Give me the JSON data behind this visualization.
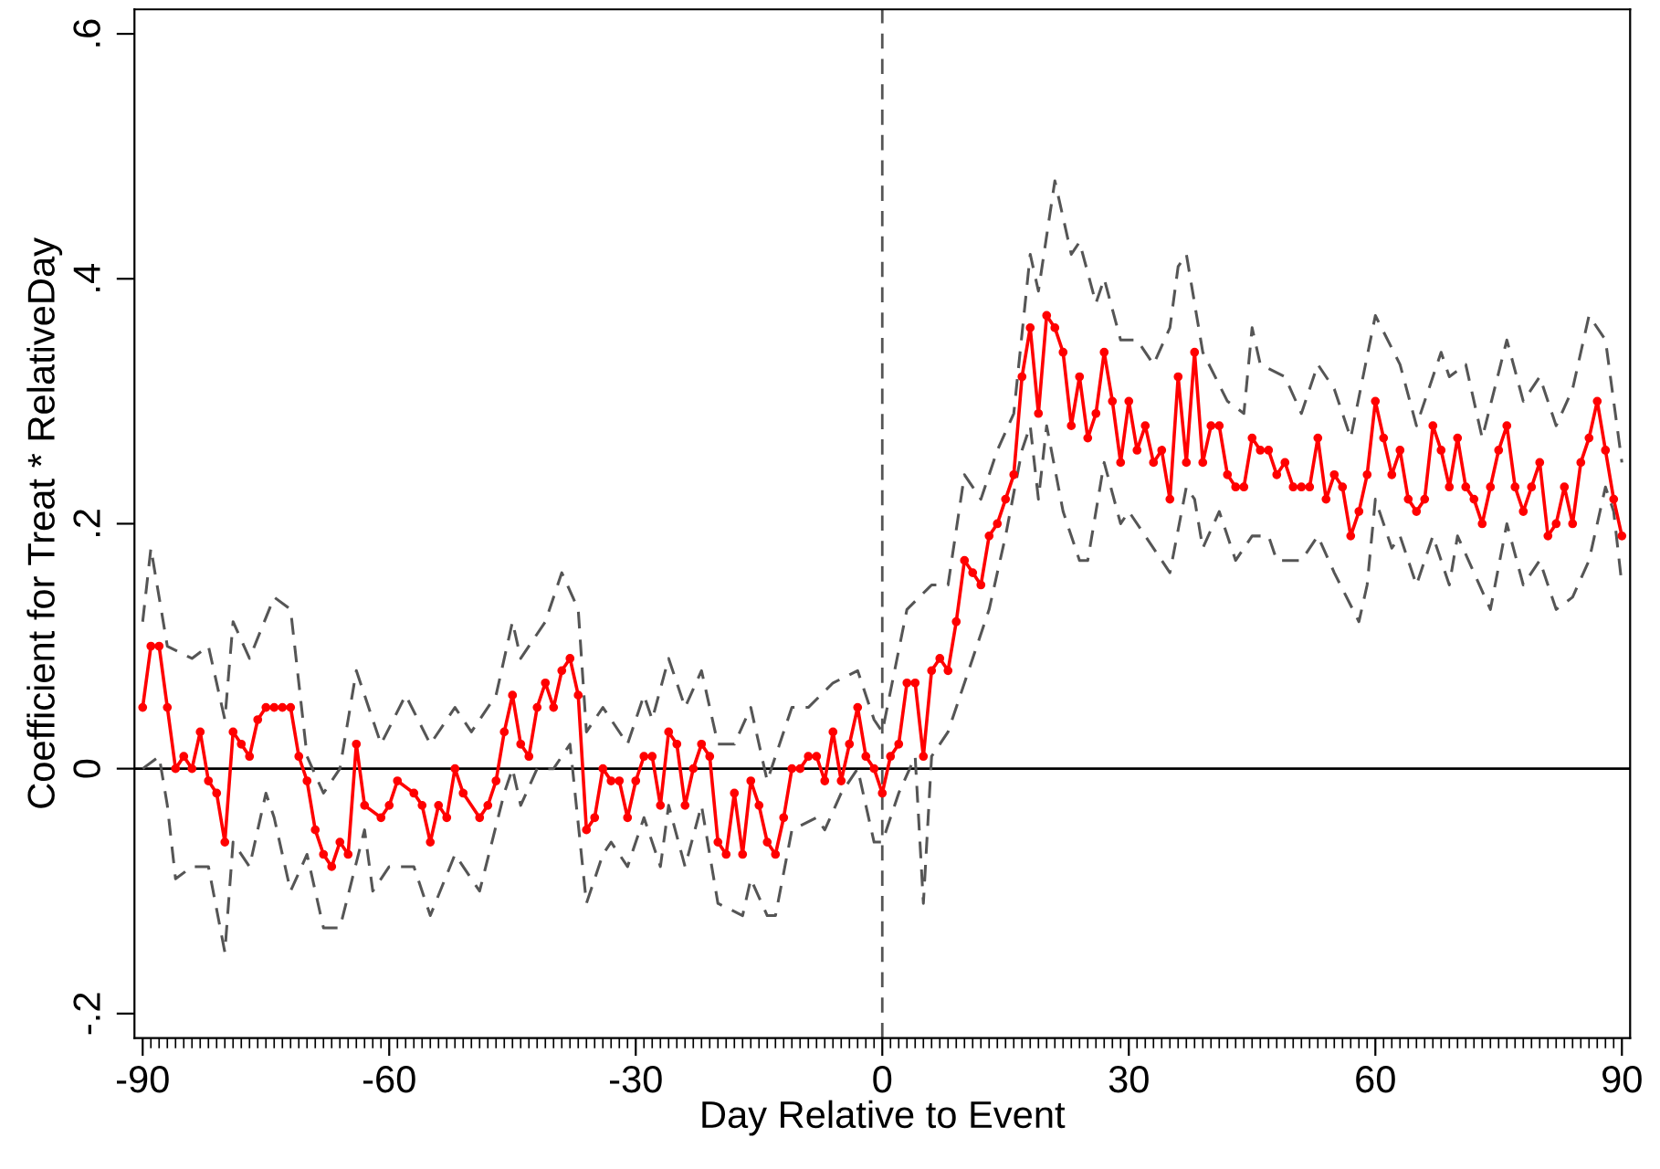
{
  "chart_data": {
    "type": "line",
    "xlabel": "Day Relative to Event",
    "ylabel": "Coefficient for Treat * RelativeDay",
    "xlim": [
      -91,
      91
    ],
    "ylim": [
      -0.22,
      0.62
    ],
    "yticks": [
      {
        "value": -0.2,
        "label": "-.2"
      },
      {
        "value": 0,
        "label": "0"
      },
      {
        "value": 0.2,
        "label": ".2"
      },
      {
        "value": 0.4,
        "label": ".4"
      },
      {
        "value": 0.6,
        "label": ".6"
      }
    ],
    "xticks": [
      -90,
      -60,
      -30,
      0,
      30,
      60,
      90,
      {
        "value": -89,
        "label": null
      },
      {
        "value": -88,
        "label": null
      },
      {
        "value": -87,
        "label": null
      },
      {
        "value": -86,
        "label": null
      },
      {
        "value": -85,
        "label": null
      },
      {
        "value": -84,
        "label": null
      },
      {
        "value": -83,
        "label": null
      },
      {
        "value": -82,
        "label": null
      },
      {
        "value": -81,
        "label": null
      },
      {
        "value": -80,
        "label": null
      },
      {
        "value": -79,
        "label": null
      },
      {
        "value": -78,
        "label": null
      },
      {
        "value": -77,
        "label": null
      },
      {
        "value": -76,
        "label": null
      },
      {
        "value": -75,
        "label": null
      },
      {
        "value": -74,
        "label": null
      },
      {
        "value": -73,
        "label": null
      },
      {
        "value": -72,
        "label": null
      },
      {
        "value": -71,
        "label": null
      },
      {
        "value": -70,
        "label": null
      },
      {
        "value": -69,
        "label": null
      },
      {
        "value": -68,
        "label": null
      },
      {
        "value": -67,
        "label": null
      },
      {
        "value": -66,
        "label": null
      },
      {
        "value": -65,
        "label": null
      },
      {
        "value": -64,
        "label": null
      },
      {
        "value": -63,
        "label": null
      },
      {
        "value": -62,
        "label": null
      },
      {
        "value": -61,
        "label": null
      },
      {
        "value": -59,
        "label": null
      },
      {
        "value": -58,
        "label": null
      },
      {
        "value": -57,
        "label": null
      },
      {
        "value": -56,
        "label": null
      },
      {
        "value": -55,
        "label": null
      },
      {
        "value": -54,
        "label": null
      },
      {
        "value": -53,
        "label": null
      },
      {
        "value": -52,
        "label": null
      },
      {
        "value": -51,
        "label": null
      },
      {
        "value": -50,
        "label": null
      },
      {
        "value": -49,
        "label": null
      },
      {
        "value": -48,
        "label": null
      },
      {
        "value": -47,
        "label": null
      },
      {
        "value": -46,
        "label": null
      },
      {
        "value": -45,
        "label": null
      },
      {
        "value": -44,
        "label": null
      },
      {
        "value": -43,
        "label": null
      },
      {
        "value": -42,
        "label": null
      },
      {
        "value": -41,
        "label": null
      },
      {
        "value": -40,
        "label": null
      },
      {
        "value": -39,
        "label": null
      },
      {
        "value": -38,
        "label": null
      },
      {
        "value": -37,
        "label": null
      },
      {
        "value": -36,
        "label": null
      },
      {
        "value": -35,
        "label": null
      },
      {
        "value": -34,
        "label": null
      },
      {
        "value": -33,
        "label": null
      },
      {
        "value": -32,
        "label": null
      },
      {
        "value": -31,
        "label": null
      },
      {
        "value": -29,
        "label": null
      },
      {
        "value": -28,
        "label": null
      },
      {
        "value": -27,
        "label": null
      },
      {
        "value": -26,
        "label": null
      },
      {
        "value": -25,
        "label": null
      },
      {
        "value": -24,
        "label": null
      },
      {
        "value": -23,
        "label": null
      },
      {
        "value": -22,
        "label": null
      },
      {
        "value": -21,
        "label": null
      },
      {
        "value": -20,
        "label": null
      },
      {
        "value": -19,
        "label": null
      },
      {
        "value": -18,
        "label": null
      },
      {
        "value": -17,
        "label": null
      },
      {
        "value": -16,
        "label": null
      },
      {
        "value": -15,
        "label": null
      },
      {
        "value": -14,
        "label": null
      },
      {
        "value": -13,
        "label": null
      },
      {
        "value": -12,
        "label": null
      },
      {
        "value": -11,
        "label": null
      },
      {
        "value": -10,
        "label": null
      },
      {
        "value": -9,
        "label": null
      },
      {
        "value": -8,
        "label": null
      },
      {
        "value": -7,
        "label": null
      },
      {
        "value": -6,
        "label": null
      },
      {
        "value": -5,
        "label": null
      },
      {
        "value": -4,
        "label": null
      },
      {
        "value": -3,
        "label": null
      },
      {
        "value": -2,
        "label": null
      },
      {
        "value": -1,
        "label": null
      },
      {
        "value": 1,
        "label": null
      },
      {
        "value": 2,
        "label": null
      },
      {
        "value": 3,
        "label": null
      },
      {
        "value": 4,
        "label": null
      },
      {
        "value": 5,
        "label": null
      },
      {
        "value": 6,
        "label": null
      },
      {
        "value": 7,
        "label": null
      },
      {
        "value": 8,
        "label": null
      },
      {
        "value": 9,
        "label": null
      },
      {
        "value": 10,
        "label": null
      },
      {
        "value": 11,
        "label": null
      },
      {
        "value": 12,
        "label": null
      },
      {
        "value": 13,
        "label": null
      },
      {
        "value": 14,
        "label": null
      },
      {
        "value": 15,
        "label": null
      },
      {
        "value": 16,
        "label": null
      },
      {
        "value": 17,
        "label": null
      },
      {
        "value": 18,
        "label": null
      },
      {
        "value": 19,
        "label": null
      },
      {
        "value": 20,
        "label": null
      },
      {
        "value": 21,
        "label": null
      },
      {
        "value": 22,
        "label": null
      },
      {
        "value": 23,
        "label": null
      },
      {
        "value": 24,
        "label": null
      },
      {
        "value": 25,
        "label": null
      },
      {
        "value": 26,
        "label": null
      },
      {
        "value": 27,
        "label": null
      },
      {
        "value": 28,
        "label": null
      },
      {
        "value": 29,
        "label": null
      },
      {
        "value": 31,
        "label": null
      },
      {
        "value": 32,
        "label": null
      },
      {
        "value": 33,
        "label": null
      },
      {
        "value": 34,
        "label": null
      },
      {
        "value": 35,
        "label": null
      },
      {
        "value": 36,
        "label": null
      },
      {
        "value": 37,
        "label": null
      },
      {
        "value": 38,
        "label": null
      },
      {
        "value": 39,
        "label": null
      },
      {
        "value": 40,
        "label": null
      },
      {
        "value": 41,
        "label": null
      },
      {
        "value": 42,
        "label": null
      },
      {
        "value": 43,
        "label": null
      },
      {
        "value": 44,
        "label": null
      },
      {
        "value": 45,
        "label": null
      },
      {
        "value": 46,
        "label": null
      },
      {
        "value": 47,
        "label": null
      },
      {
        "value": 48,
        "label": null
      },
      {
        "value": 49,
        "label": null
      },
      {
        "value": 50,
        "label": null
      },
      {
        "value": 51,
        "label": null
      },
      {
        "value": 52,
        "label": null
      },
      {
        "value": 53,
        "label": null
      },
      {
        "value": 54,
        "label": null
      },
      {
        "value": 55,
        "label": null
      },
      {
        "value": 56,
        "label": null
      },
      {
        "value": 57,
        "label": null
      },
      {
        "value": 58,
        "label": null
      },
      {
        "value": 59,
        "label": null
      },
      {
        "value": 61,
        "label": null
      },
      {
        "value": 62,
        "label": null
      },
      {
        "value": 63,
        "label": null
      },
      {
        "value": 64,
        "label": null
      },
      {
        "value": 65,
        "label": null
      },
      {
        "value": 66,
        "label": null
      },
      {
        "value": 67,
        "label": null
      },
      {
        "value": 68,
        "label": null
      },
      {
        "value": 69,
        "label": null
      },
      {
        "value": 70,
        "label": null
      },
      {
        "value": 71,
        "label": null
      },
      {
        "value": 72,
        "label": null
      },
      {
        "value": 73,
        "label": null
      },
      {
        "value": 74,
        "label": null
      },
      {
        "value": 75,
        "label": null
      },
      {
        "value": 76,
        "label": null
      },
      {
        "value": 77,
        "label": null
      },
      {
        "value": 78,
        "label": null
      },
      {
        "value": 79,
        "label": null
      },
      {
        "value": 80,
        "label": null
      },
      {
        "value": 81,
        "label": null
      },
      {
        "value": 82,
        "label": null
      },
      {
        "value": 83,
        "label": null
      },
      {
        "value": 84,
        "label": null
      },
      {
        "value": 85,
        "label": null
      },
      {
        "value": 86,
        "label": null
      },
      {
        "value": 87,
        "label": null
      },
      {
        "value": 88,
        "label": null
      },
      {
        "value": 89,
        "label": null
      }
    ],
    "grid": false,
    "legend": false,
    "ref_lines": [
      {
        "axis": "y",
        "value": 0,
        "label": null,
        "color": "#000000",
        "line_style": "solid"
      },
      {
        "axis": "x",
        "value": 0,
        "label": null,
        "color": "#555555",
        "line_style": "dashed"
      }
    ],
    "series": [
      {
        "color": "#555555",
        "line_style": "dashed",
        "marker": "none",
        "x": [
          -90,
          -89,
          -87,
          -84,
          -82,
          -80,
          -79,
          -77,
          -74,
          -72,
          -70,
          -68,
          -66,
          -64,
          -61,
          -58,
          -55,
          -52,
          -50,
          -47,
          -45,
          -44,
          -41,
          -39,
          -37,
          -36,
          -34,
          -31,
          -29,
          -28,
          -26,
          -24,
          -22,
          -20,
          -18,
          -16,
          -14,
          -11,
          -9,
          -6,
          -3,
          -1,
          0,
          3,
          6,
          8,
          10,
          12,
          14,
          16,
          18,
          19,
          21,
          23,
          24,
          26,
          27,
          29,
          31,
          33,
          35,
          36,
          37,
          39,
          42,
          44,
          45,
          46,
          49,
          51,
          53,
          55,
          57,
          60,
          63,
          65,
          68,
          69,
          71,
          73,
          76,
          78,
          80,
          82,
          84,
          86,
          88,
          90
        ],
        "values": [
          0.12,
          0.18,
          0.1,
          0.09,
          0.1,
          0.04,
          0.12,
          0.09,
          0.14,
          0.13,
          0.01,
          -0.02,
          0.0,
          0.08,
          0.02,
          0.06,
          0.02,
          0.05,
          0.03,
          0.06,
          0.12,
          0.09,
          0.12,
          0.16,
          0.13,
          0.03,
          0.05,
          0.02,
          0.06,
          0.04,
          0.09,
          0.05,
          0.08,
          0.02,
          0.02,
          0.05,
          -0.01,
          0.05,
          0.05,
          0.07,
          0.08,
          0.04,
          0.03,
          0.13,
          0.15,
          0.15,
          0.24,
          0.22,
          0.26,
          0.29,
          0.42,
          0.39,
          0.48,
          0.42,
          0.43,
          0.38,
          0.4,
          0.35,
          0.35,
          0.33,
          0.36,
          0.41,
          0.42,
          0.34,
          0.3,
          0.29,
          0.36,
          0.33,
          0.32,
          0.29,
          0.33,
          0.31,
          0.27,
          0.37,
          0.33,
          0.28,
          0.34,
          0.32,
          0.33,
          0.27,
          0.35,
          0.3,
          0.32,
          0.28,
          0.31,
          0.37,
          0.35,
          0.25
        ]
      },
      {
        "color": "#555555",
        "line_style": "dashed",
        "marker": "none",
        "x": [
          -90,
          -88,
          -87,
          -86,
          -84,
          -82,
          -80,
          -79,
          -77,
          -75,
          -74,
          -72,
          -70,
          -68,
          -66,
          -63,
          -62,
          -60,
          -57,
          -55,
          -52,
          -49,
          -46,
          -45,
          -44,
          -42,
          -40,
          -38,
          -36,
          -34,
          -33,
          -31,
          -29,
          -27,
          -26,
          -24,
          -22,
          -20,
          -17,
          -16,
          -14,
          -13,
          -11,
          -8,
          -7,
          -5,
          -3,
          -1,
          0,
          2,
          4,
          5,
          6,
          8,
          11,
          13,
          15,
          17,
          18,
          19,
          20,
          22,
          24,
          25,
          27,
          29,
          30,
          32,
          34,
          35,
          37,
          38,
          39,
          41,
          42,
          43,
          45,
          47,
          48,
          50,
          51,
          53,
          55,
          58,
          59,
          60,
          62,
          63,
          65,
          67,
          69,
          70,
          72,
          74,
          76,
          78,
          80,
          82,
          84,
          86,
          88,
          89,
          90
        ],
        "values": [
          0.0,
          0.01,
          -0.03,
          -0.09,
          -0.08,
          -0.08,
          -0.15,
          -0.06,
          -0.08,
          -0.02,
          -0.04,
          -0.1,
          -0.07,
          -0.13,
          -0.13,
          -0.05,
          -0.1,
          -0.08,
          -0.08,
          -0.12,
          -0.07,
          -0.1,
          -0.02,
          0.0,
          -0.03,
          0.0,
          0.0,
          0.02,
          -0.11,
          -0.07,
          -0.06,
          -0.08,
          -0.04,
          -0.08,
          -0.03,
          -0.08,
          -0.03,
          -0.11,
          -0.12,
          -0.09,
          -0.12,
          -0.12,
          -0.05,
          -0.04,
          -0.05,
          -0.02,
          0.0,
          -0.06,
          -0.06,
          -0.02,
          0.01,
          -0.11,
          0.01,
          0.03,
          0.09,
          0.13,
          0.19,
          0.26,
          0.28,
          0.22,
          0.28,
          0.21,
          0.17,
          0.17,
          0.25,
          0.2,
          0.21,
          0.19,
          0.17,
          0.16,
          0.23,
          0.22,
          0.18,
          0.21,
          0.19,
          0.17,
          0.19,
          0.19,
          0.17,
          0.17,
          0.17,
          0.19,
          0.16,
          0.12,
          0.15,
          0.22,
          0.18,
          0.19,
          0.15,
          0.19,
          0.15,
          0.19,
          0.16,
          0.13,
          0.2,
          0.15,
          0.17,
          0.13,
          0.14,
          0.17,
          0.23,
          0.21,
          0.15
        ]
      },
      {
        "color": "#ff0000",
        "line_style": "solid",
        "marker": "circle",
        "x": [
          -90,
          -89,
          -88,
          -87,
          -86,
          -85,
          -84,
          -83,
          -82,
          -81,
          -80,
          -79,
          -78,
          -77,
          -76,
          -75,
          -74,
          -73,
          -72,
          -71,
          -70,
          -69,
          -68,
          -67,
          -66,
          -65,
          -64,
          -63,
          -61,
          -60,
          -59,
          -57,
          -56,
          -55,
          -54,
          -53,
          -52,
          -51,
          -49,
          -48,
          -47,
          -46,
          -45,
          -44,
          -43,
          -42,
          -41,
          -40,
          -39,
          -38,
          -37,
          -36,
          -35,
          -34,
          -33,
          -32,
          -31,
          -30,
          -29,
          -28,
          -27,
          -26,
          -25,
          -24,
          -23,
          -22,
          -21,
          -20,
          -19,
          -18,
          -17,
          -16,
          -15,
          -14,
          -13,
          -12,
          -11,
          -10,
          -9,
          -8,
          -7,
          -6,
          -5,
          -4,
          -3,
          -2,
          -1,
          0,
          1,
          2,
          3,
          4,
          5,
          6,
          7,
          8,
          9,
          10,
          11,
          12,
          13,
          14,
          15,
          16,
          17,
          18,
          19,
          20,
          21,
          22,
          23,
          24,
          25,
          26,
          27,
          28,
          29,
          30,
          31,
          32,
          33,
          34,
          35,
          36,
          37,
          38,
          39,
          40,
          41,
          42,
          43,
          44,
          45,
          46,
          47,
          48,
          49,
          50,
          51,
          52,
          53,
          54,
          55,
          56,
          57,
          58,
          59,
          60,
          61,
          62,
          63,
          64,
          65,
          66,
          67,
          68,
          69,
          70,
          71,
          72,
          73,
          74,
          75,
          76,
          77,
          78,
          79,
          80,
          81,
          82,
          83,
          84,
          85,
          86,
          87,
          88,
          89,
          90
        ],
        "values": [
          0.05,
          0.1,
          0.1,
          0.05,
          0.0,
          0.01,
          0.0,
          0.03,
          -0.01,
          -0.02,
          -0.06,
          0.03,
          0.02,
          0.01,
          0.04,
          0.05,
          0.05,
          0.05,
          0.05,
          0.01,
          -0.01,
          -0.05,
          -0.07,
          -0.08,
          -0.06,
          -0.07,
          0.02,
          -0.03,
          -0.04,
          -0.03,
          -0.01,
          -0.02,
          -0.03,
          -0.06,
          -0.03,
          -0.04,
          0.0,
          -0.02,
          -0.04,
          -0.03,
          -0.01,
          0.03,
          0.06,
          0.02,
          0.01,
          0.05,
          0.07,
          0.05,
          0.08,
          0.09,
          0.06,
          -0.05,
          -0.04,
          0.0,
          -0.01,
          -0.01,
          -0.04,
          -0.01,
          0.01,
          0.01,
          -0.03,
          0.03,
          0.02,
          -0.03,
          0.0,
          0.02,
          0.01,
          -0.06,
          -0.07,
          -0.02,
          -0.07,
          -0.01,
          -0.03,
          -0.06,
          -0.07,
          -0.04,
          0.0,
          0.0,
          0.01,
          0.01,
          -0.01,
          0.03,
          -0.01,
          0.02,
          0.05,
          0.01,
          0.0,
          -0.02,
          0.01,
          0.02,
          0.07,
          0.07,
          0.01,
          0.08,
          0.09,
          0.08,
          0.12,
          0.17,
          0.16,
          0.15,
          0.19,
          0.2,
          0.22,
          0.24,
          0.32,
          0.36,
          0.29,
          0.37,
          0.36,
          0.34,
          0.28,
          0.32,
          0.27,
          0.29,
          0.34,
          0.3,
          0.25,
          0.3,
          0.26,
          0.28,
          0.25,
          0.26,
          0.22,
          0.32,
          0.25,
          0.34,
          0.25,
          0.28,
          0.28,
          0.24,
          0.23,
          0.23,
          0.27,
          0.26,
          0.26,
          0.24,
          0.25,
          0.23,
          0.23,
          0.23,
          0.27,
          0.22,
          0.24,
          0.23,
          0.19,
          0.21,
          0.24,
          0.3,
          0.27,
          0.24,
          0.26,
          0.22,
          0.21,
          0.22,
          0.28,
          0.26,
          0.23,
          0.27,
          0.23,
          0.22,
          0.2,
          0.23,
          0.26,
          0.28,
          0.23,
          0.21,
          0.23,
          0.25,
          0.19,
          0.2,
          0.23,
          0.2,
          0.25,
          0.27,
          0.3,
          0.26,
          0.22,
          0.19
        ]
      }
    ]
  }
}
